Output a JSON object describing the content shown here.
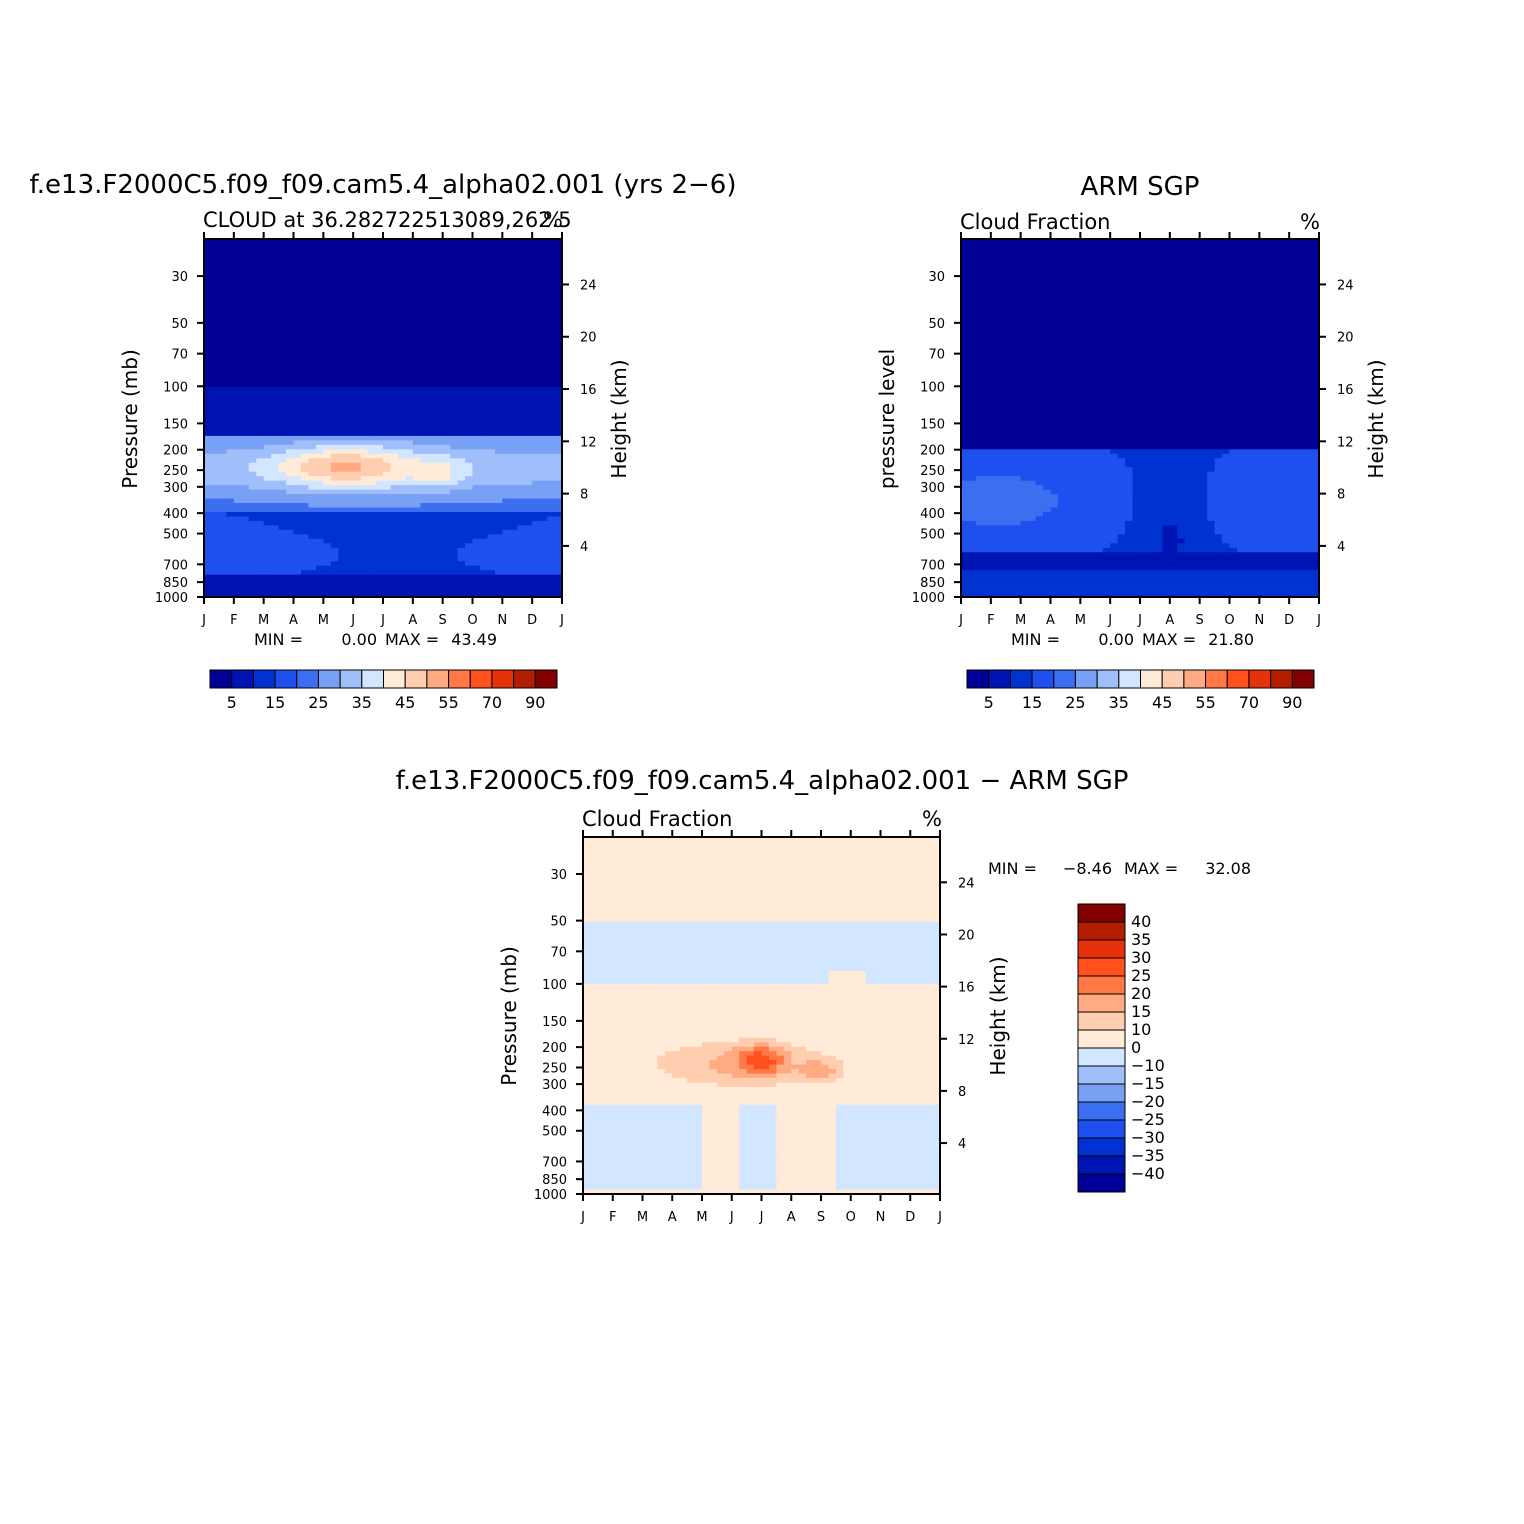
{
  "chart_data": [
    {
      "type": "heatmap",
      "title": "f.e13.F2000C5.f09_f09.cam5.4_alpha02.001 (yrs 2−6)",
      "left_string": "CLOUD at 36.282722513089,262.5",
      "right_string": "%",
      "ylabel": "Pressure (mb)",
      "ylabel_right": "Height (km)",
      "x_ticks": [
        "J",
        "F",
        "M",
        "A",
        "M",
        "J",
        "J",
        "A",
        "S",
        "O",
        "N",
        "D",
        "J"
      ],
      "y_ticks": [
        30,
        50,
        70,
        100,
        150,
        200,
        250,
        300,
        400,
        500,
        700,
        850,
        1000
      ],
      "y_ticks_right": [
        24,
        20,
        16,
        12,
        8,
        4
      ],
      "ylim": [
        1000,
        20
      ],
      "stats": {
        "min_label": "MIN =",
        "min": "0.00",
        "max_label": "MAX =",
        "max": "43.49"
      },
      "min": 0.0,
      "max": 43.49,
      "colorbar_labels": [
        "5",
        "15",
        "25",
        "35",
        "45",
        "55",
        "70",
        "90"
      ],
      "field": "model"
    },
    {
      "type": "heatmap",
      "title": "ARM SGP",
      "left_string": "Cloud Fraction",
      "right_string": "%",
      "ylabel": "pressure level",
      "ylabel_right": "Height (km)",
      "x_ticks": [
        "J",
        "F",
        "M",
        "A",
        "M",
        "J",
        "J",
        "A",
        "S",
        "O",
        "N",
        "D",
        "J"
      ],
      "y_ticks": [
        30,
        50,
        70,
        100,
        150,
        200,
        250,
        300,
        400,
        500,
        700,
        850,
        1000
      ],
      "y_ticks_right": [
        24,
        20,
        16,
        12,
        8,
        4
      ],
      "ylim": [
        1000,
        20
      ],
      "stats": {
        "min_label": "MIN =",
        "min": "0.00",
        "max_label": "MAX =",
        "max": "21.80"
      },
      "min": 0.0,
      "max": 21.8,
      "colorbar_labels": [
        "5",
        "15",
        "25",
        "35",
        "45",
        "55",
        "70",
        "90"
      ],
      "field": "obs"
    },
    {
      "type": "heatmap",
      "title": "f.e13.F2000C5.f09_f09.cam5.4_alpha02.001 − ARM SGP",
      "left_string": "Cloud Fraction",
      "right_string": "%",
      "ylabel": "Pressure (mb)",
      "ylabel_right": "Height (km)",
      "x_ticks": [
        "J",
        "F",
        "M",
        "A",
        "M",
        "J",
        "J",
        "A",
        "S",
        "O",
        "N",
        "D",
        "J"
      ],
      "y_ticks": [
        30,
        50,
        70,
        100,
        150,
        200,
        250,
        300,
        400,
        500,
        700,
        850,
        1000
      ],
      "y_ticks_right": [
        24,
        20,
        16,
        12,
        8,
        4
      ],
      "ylim": [
        1000,
        20
      ],
      "stats": {
        "min_label": "MIN =",
        "min": "−8.46",
        "max_label": "MAX =",
        "max": "32.08"
      },
      "min": -8.46,
      "max": 32.08,
      "colorbar_labels": [
        "40",
        "35",
        "30",
        "25",
        "20",
        "15",
        "10",
        "0",
        "−10",
        "−15",
        "−20",
        "−25",
        "−30",
        "−35",
        "−40"
      ],
      "field": "diff"
    }
  ],
  "colors": {
    "seq": [
      "#000096",
      "#0014b4",
      "#0032d2",
      "#1e50f0",
      "#3c6ef0",
      "#78a0f5",
      "#a0befa",
      "#d2e6ff",
      "#ffebd7",
      "#ffcdaf",
      "#ffaa82",
      "#ff7846",
      "#ff501e",
      "#e6320a",
      "#b41e00",
      "#820000"
    ],
    "diff": [
      "#820000",
      "#b41e00",
      "#e6320a",
      "#ff501e",
      "#ff7846",
      "#ffaa82",
      "#ffcdaf",
      "#ffebd7",
      "#d2e6ff",
      "#a0befa",
      "#78a0f5",
      "#3c6ef0",
      "#1e50f0",
      "#0032d2",
      "#0014b4",
      "#000096"
    ]
  }
}
